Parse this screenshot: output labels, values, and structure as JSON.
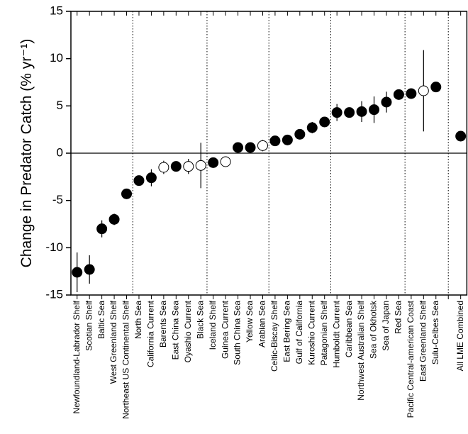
{
  "chart_data": {
    "type": "scatter",
    "y_label": "Change in Predator Catch (% yr⁻¹)",
    "categories": [
      "Newfoundland-Labrador Shelf",
      "Scotian Shelf",
      "Baltic Sea",
      "West Greenland Shelf",
      "Northeast US Continental Shelf",
      "North Sea",
      "California Current",
      "Barents Sea",
      "East China Sea",
      "Oyashio Current",
      "Black Sea",
      "Iceland Shelf",
      "Guinea Current",
      "South China Sea",
      "Yellow Sea",
      "Arabian Sea",
      "Celtic-Biscay Shelf",
      "East Bering Sea",
      "Gulf of California",
      "Kuroshio Current",
      "Patagonian Shelf",
      "Humboldt Current",
      "Caribbean Sea",
      "Northwest Australian Shelf",
      "Sea of Okhotsk",
      "Sea of Japan",
      "Red Sea",
      "Pacific Central-american Coast",
      "East Greenland Shelf",
      "Sulu-Celbes Sea",
      null,
      "All LME Combined"
    ],
    "values": [
      -12.6,
      -12.3,
      -8.0,
      -7.0,
      -4.3,
      -2.9,
      -2.6,
      -1.5,
      -1.4,
      -1.4,
      -1.3,
      -1.0,
      -0.9,
      0.6,
      0.6,
      0.8,
      1.3,
      1.4,
      2.0,
      2.7,
      3.3,
      4.3,
      4.3,
      4.4,
      4.6,
      5.4,
      6.2,
      6.3,
      6.6,
      7.0,
      null,
      1.8
    ],
    "errors": [
      2.1,
      1.5,
      0.9,
      0.6,
      0.2,
      0.3,
      0.9,
      0.7,
      0.2,
      0.8,
      2.4,
      0.2,
      0.1,
      0.1,
      0.1,
      0.6,
      0.3,
      0.3,
      0.4,
      0.6,
      0.3,
      0.9,
      0.4,
      1.1,
      1.4,
      1.1,
      0.3,
      0.2,
      4.3,
      0.2,
      null,
      0.1
    ],
    "hollow": [
      false,
      false,
      false,
      false,
      false,
      false,
      false,
      true,
      false,
      true,
      true,
      false,
      true,
      false,
      false,
      true,
      false,
      false,
      false,
      false,
      false,
      false,
      false,
      false,
      false,
      false,
      false,
      false,
      true,
      false,
      false,
      false
    ],
    "color": "#000000",
    "separators": [
      4.5,
      10.5,
      15.5,
      20.5,
      26.5,
      30
    ],
    "zero_line": true,
    "ylim": [
      -15,
      15
    ],
    "yticks": [
      -15,
      -10,
      -5,
      0,
      5,
      10,
      15
    ]
  }
}
